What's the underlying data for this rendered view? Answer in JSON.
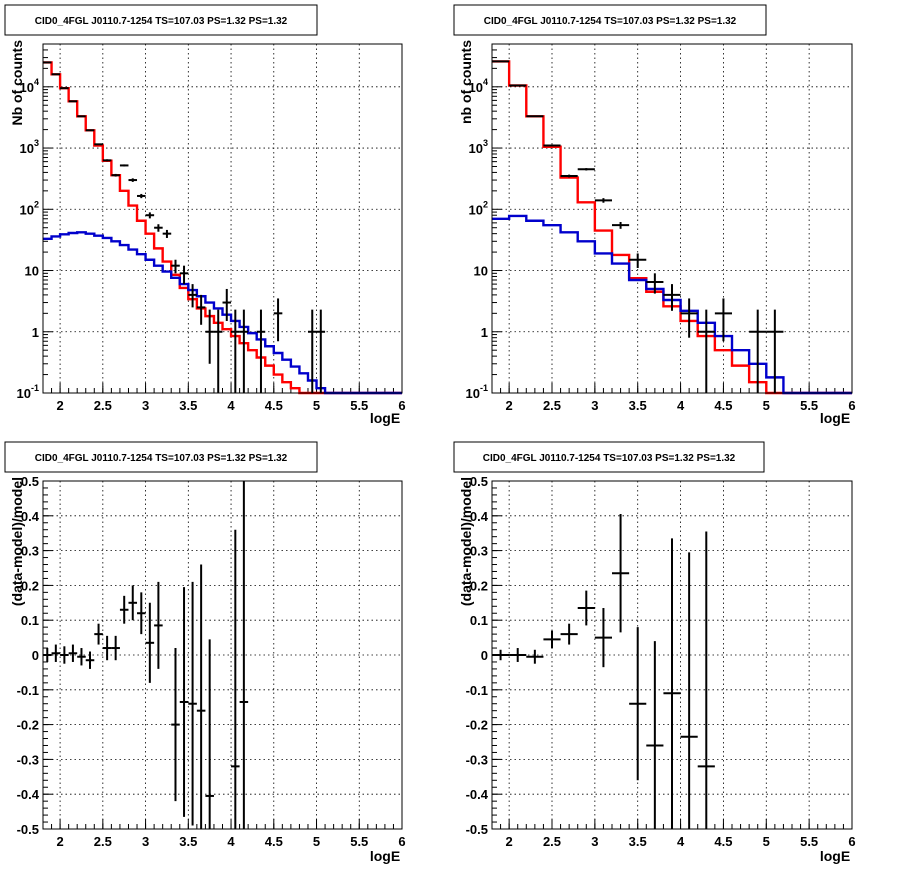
{
  "chart_data": [
    {
      "type": "line",
      "title": "CID0_4FGL J0110.7-1254 TS=107.03 PS=1.32 PS=1.32",
      "xlabel": "logE",
      "ylabel": "Nb of counts",
      "xlim": [
        1.8,
        6.0
      ],
      "ylim": [
        0.1,
        50000
      ],
      "yscale": "log",
      "grid": true,
      "x_ticks": [
        "2",
        "2.5",
        "3",
        "3.5",
        "4",
        "4.5",
        "5",
        "5.5",
        "6"
      ],
      "y_ticks": [
        "10^-1",
        "1",
        "10",
        "10^2",
        "10^3",
        "10^4"
      ],
      "bin_edges": [
        1.8,
        1.9,
        2.0,
        2.1,
        2.2,
        2.3,
        2.4,
        2.5,
        2.6,
        2.7,
        2.8,
        2.9,
        3.0,
        3.1,
        3.2,
        3.3,
        3.4,
        3.5,
        3.6,
        3.7,
        3.8,
        3.9,
        4.0,
        4.1,
        4.2,
        4.3,
        4.4,
        4.5,
        4.6,
        4.7,
        4.8,
        4.9,
        5.0,
        5.1,
        5.2,
        5.3,
        5.4,
        5.5,
        5.6,
        5.7,
        5.8,
        5.9,
        6.0
      ],
      "series": [
        {
          "color": "#ff0000",
          "values": [
            25000,
            16000,
            9500,
            5800,
            3300,
            1950,
            1100,
            620,
            360,
            200,
            115,
            65,
            40,
            23,
            14,
            8.5,
            5.2,
            3.4,
            2.4,
            1.8,
            1.4,
            1.1,
            0.85,
            0.65,
            0.5,
            0.38,
            0.28,
            0.2,
            0.15,
            0.12,
            0.1,
            0.1,
            0.1,
            0.1,
            0.1,
            0.1,
            0.1,
            0.1,
            0.1,
            0.1,
            0.1,
            0.1
          ]
        },
        {
          "color": "#0000cc",
          "values": [
            33,
            36,
            39,
            41,
            42,
            40,
            37,
            34,
            30,
            26,
            22,
            18.5,
            15,
            12,
            9.6,
            7.6,
            6,
            4.8,
            3.8,
            3,
            2.4,
            1.9,
            1.5,
            1.2,
            0.95,
            0.75,
            0.58,
            0.45,
            0.35,
            0.27,
            0.21,
            0.16,
            0.12,
            0.1,
            0.1,
            0.1,
            0.1,
            0.1,
            0.1,
            0.1,
            0.1,
            0.1
          ]
        }
      ],
      "data_points": [
        {
          "x": 1.85,
          "y": 25000,
          "ylo": 24800,
          "yhi": 25200
        },
        {
          "x": 1.95,
          "y": 16000,
          "ylo": 15800,
          "yhi": 16200
        },
        {
          "x": 2.05,
          "y": 9500,
          "ylo": 9400,
          "yhi": 9600
        },
        {
          "x": 2.15,
          "y": 5800,
          "ylo": 5700,
          "yhi": 5900
        },
        {
          "x": 2.25,
          "y": 3300,
          "ylo": 3240,
          "yhi": 3360
        },
        {
          "x": 2.35,
          "y": 1950,
          "ylo": 1900,
          "yhi": 2000
        },
        {
          "x": 2.45,
          "y": 1150,
          "ylo": 1120,
          "yhi": 1180
        },
        {
          "x": 2.55,
          "y": 630,
          "ylo": 605,
          "yhi": 655
        },
        {
          "x": 2.65,
          "y": 360,
          "ylo": 342,
          "yhi": 378
        },
        {
          "x": 2.75,
          "y": 520,
          "ylo": 500,
          "yhi": 540
        },
        {
          "x": 2.85,
          "y": 300,
          "ylo": 280,
          "yhi": 320
        },
        {
          "x": 2.95,
          "y": 165,
          "ylo": 152,
          "yhi": 178
        },
        {
          "x": 3.05,
          "y": 80,
          "ylo": 71,
          "yhi": 89
        },
        {
          "x": 3.15,
          "y": 50,
          "ylo": 43,
          "yhi": 57
        },
        {
          "x": 3.25,
          "y": 40,
          "ylo": 34,
          "yhi": 46
        },
        {
          "x": 3.35,
          "y": 12,
          "ylo": 9,
          "yhi": 15
        },
        {
          "x": 3.45,
          "y": 9,
          "ylo": 6,
          "yhi": 12
        },
        {
          "x": 3.55,
          "y": 4,
          "ylo": 2.5,
          "yhi": 6
        },
        {
          "x": 3.65,
          "y": 2.5,
          "ylo": 1.3,
          "yhi": 4
        },
        {
          "x": 3.75,
          "y": 1,
          "ylo": 0.3,
          "yhi": 2.3
        },
        {
          "x": 3.85,
          "y": 1,
          "ylo": 0.1,
          "yhi": 2.3
        },
        {
          "x": 3.95,
          "y": 3,
          "ylo": 1.5,
          "yhi": 5
        },
        {
          "x": 4.05,
          "y": 1,
          "ylo": 0.1,
          "yhi": 2.3
        },
        {
          "x": 4.15,
          "y": 1,
          "ylo": 0.1,
          "yhi": 2.3
        },
        {
          "x": 4.35,
          "y": 1,
          "ylo": 0.1,
          "yhi": 2.3
        },
        {
          "x": 4.55,
          "y": 2,
          "ylo": 0.7,
          "yhi": 3.5
        },
        {
          "x": 4.95,
          "y": 1,
          "ylo": 0.1,
          "yhi": 2.3
        },
        {
          "x": 5.05,
          "y": 1,
          "ylo": 0.1,
          "yhi": 2.3
        }
      ]
    },
    {
      "type": "line",
      "title": "CID0_4FGL J0110.7-1254 TS=107.03 PS=1.32 PS=1.32",
      "xlabel": "logE",
      "ylabel": "nb of counts",
      "xlim": [
        1.8,
        6.0
      ],
      "ylim": [
        0.1,
        50000
      ],
      "yscale": "log",
      "grid": true,
      "x_ticks": [
        "2",
        "2.5",
        "3",
        "3.5",
        "4",
        "4.5",
        "5",
        "5.5",
        "6"
      ],
      "y_ticks": [
        "10^-1",
        "1",
        "10",
        "10^2",
        "10^3",
        "10^4"
      ],
      "bin_edges": [
        1.8,
        2.0,
        2.2,
        2.4,
        2.6,
        2.8,
        3.0,
        3.2,
        3.4,
        3.6,
        3.8,
        4.0,
        4.2,
        4.4,
        4.6,
        4.8,
        5.0,
        5.2,
        5.4,
        5.6,
        5.8,
        6.0
      ],
      "series": [
        {
          "color": "#ff0000",
          "values": [
            26000,
            10500,
            3300,
            1050,
            330,
            130,
            45,
            18,
            7.5,
            4.5,
            2.6,
            1.5,
            0.85,
            0.5,
            0.28,
            0.15,
            0.1,
            0.1,
            0.1,
            0.1,
            0.1
          ]
        },
        {
          "color": "#0000cc",
          "values": [
            70,
            78,
            65,
            55,
            42,
            30,
            19,
            13,
            7,
            5,
            3.3,
            2.2,
            1.4,
            0.85,
            0.5,
            0.3,
            0.18,
            0.1,
            0.1,
            0.1,
            0.1
          ]
        }
      ],
      "data_points": [
        {
          "x": 1.9,
          "y": 26000,
          "ylo": 25800,
          "yhi": 26200
        },
        {
          "x": 2.1,
          "y": 10500,
          "ylo": 10400,
          "yhi": 10600
        },
        {
          "x": 2.3,
          "y": 3300,
          "ylo": 3240,
          "yhi": 3360
        },
        {
          "x": 2.5,
          "y": 1100,
          "ylo": 1070,
          "yhi": 1130
        },
        {
          "x": 2.7,
          "y": 350,
          "ylo": 332,
          "yhi": 368
        },
        {
          "x": 2.9,
          "y": 450,
          "ylo": 430,
          "yhi": 470
        },
        {
          "x": 3.1,
          "y": 140,
          "ylo": 128,
          "yhi": 152
        },
        {
          "x": 3.3,
          "y": 55,
          "ylo": 48,
          "yhi": 62
        },
        {
          "x": 3.5,
          "y": 15,
          "ylo": 11,
          "yhi": 19
        },
        {
          "x": 3.7,
          "y": 6.5,
          "ylo": 4.2,
          "yhi": 9
        },
        {
          "x": 3.9,
          "y": 4,
          "ylo": 2.2,
          "yhi": 6
        },
        {
          "x": 4.1,
          "y": 2,
          "ylo": 0.8,
          "yhi": 3.5
        },
        {
          "x": 4.3,
          "y": 1,
          "ylo": 0.1,
          "yhi": 2.3
        },
        {
          "x": 4.5,
          "y": 2,
          "ylo": 0.7,
          "yhi": 3.5
        },
        {
          "x": 4.9,
          "y": 1,
          "ylo": 0.1,
          "yhi": 2.3
        },
        {
          "x": 5.1,
          "y": 1,
          "ylo": 0.1,
          "yhi": 2.3
        }
      ]
    },
    {
      "type": "scatter",
      "title": "CID0_4FGL J0110.7-1254 TS=107.03 PS=1.32 PS=1.32",
      "xlabel": "logE",
      "ylabel": "(data-model)/model",
      "xlim": [
        1.8,
        6.0
      ],
      "ylim": [
        -0.5,
        0.5
      ],
      "grid": true,
      "x_ticks": [
        "2",
        "2.5",
        "3",
        "3.5",
        "4",
        "4.5",
        "5",
        "5.5",
        "6"
      ],
      "y_ticks": [
        "-0.5",
        "-0.4",
        "-0.3",
        "-0.2",
        "-0.1",
        "0",
        "0.1",
        "0.2",
        "0.3",
        "0.4",
        "0.5"
      ],
      "x_halfwidth": 0.05,
      "points": [
        {
          "x": 1.85,
          "y": 0.0,
          "err": 0.02
        },
        {
          "x": 1.95,
          "y": 0.005,
          "err": 0.025
        },
        {
          "x": 2.05,
          "y": 0.0,
          "err": 0.025
        },
        {
          "x": 2.15,
          "y": 0.005,
          "err": 0.025
        },
        {
          "x": 2.25,
          "y": -0.005,
          "err": 0.025
        },
        {
          "x": 2.35,
          "y": -0.015,
          "err": 0.025
        },
        {
          "x": 2.45,
          "y": 0.06,
          "err": 0.03
        },
        {
          "x": 2.55,
          "y": 0.02,
          "err": 0.035
        },
        {
          "x": 2.65,
          "y": 0.02,
          "err": 0.035
        },
        {
          "x": 2.75,
          "y": 0.13,
          "err": 0.04
        },
        {
          "x": 2.85,
          "y": 0.15,
          "err": 0.05
        },
        {
          "x": 2.95,
          "y": 0.12,
          "err": 0.06
        },
        {
          "x": 3.05,
          "y": 0.035,
          "err": 0.115
        },
        {
          "x": 3.15,
          "y": 0.085,
          "err": 0.125
        },
        {
          "x": 3.35,
          "y": -0.2,
          "err": 0.22
        },
        {
          "x": 3.45,
          "y": -0.135,
          "err": 0.33
        },
        {
          "x": 3.55,
          "y": -0.14,
          "err": 0.35
        },
        {
          "x": 3.65,
          "y": -0.16,
          "err": 0.42
        },
        {
          "x": 3.75,
          "y": -0.405,
          "err": 0.45
        },
        {
          "x": 4.05,
          "y": -0.32,
          "err": 0.68
        },
        {
          "x": 4.15,
          "y": -0.135,
          "err": 0.7
        }
      ]
    },
    {
      "type": "scatter",
      "title": "CID0_4FGL J0110.7-1254 TS=107.03 PS=1.32 PS=1.32",
      "xlabel": "logE",
      "ylabel": "(data-model)/model",
      "xlim": [
        1.8,
        6.0
      ],
      "ylim": [
        -0.5,
        0.5
      ],
      "grid": true,
      "x_ticks": [
        "2",
        "2.5",
        "3",
        "3.5",
        "4",
        "4.5",
        "5",
        "5.5",
        "6"
      ],
      "y_ticks": [
        "-0.5",
        "-0.4",
        "-0.3",
        "-0.2",
        "-0.1",
        "0",
        "0.1",
        "0.2",
        "0.3",
        "0.4",
        "0.5"
      ],
      "x_halfwidth": 0.1,
      "points": [
        {
          "x": 1.9,
          "y": 0.0,
          "err": 0.015
        },
        {
          "x": 2.1,
          "y": 0.0,
          "err": 0.02
        },
        {
          "x": 2.3,
          "y": -0.005,
          "err": 0.02
        },
        {
          "x": 2.5,
          "y": 0.045,
          "err": 0.025
        },
        {
          "x": 2.7,
          "y": 0.06,
          "err": 0.03
        },
        {
          "x": 2.9,
          "y": 0.135,
          "err": 0.05
        },
        {
          "x": 3.1,
          "y": 0.05,
          "err": 0.085
        },
        {
          "x": 3.3,
          "y": 0.235,
          "err": 0.17
        },
        {
          "x": 3.5,
          "y": -0.14,
          "err": 0.22
        },
        {
          "x": 3.7,
          "y": -0.26,
          "err": 0.3
        },
        {
          "x": 3.9,
          "y": -0.11,
          "err": 0.445
        },
        {
          "x": 4.1,
          "y": -0.235,
          "err": 0.53
        },
        {
          "x": 4.3,
          "y": -0.32,
          "err": 0.675
        }
      ]
    }
  ]
}
